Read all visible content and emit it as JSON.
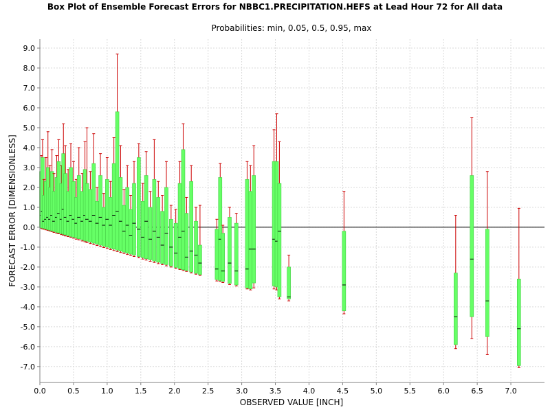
{
  "chart_data": {
    "type": "box",
    "title": "Box Plot of Ensemble Forecast Errors for NBBC1.PRECIPITATION.HEFS at Lead Hour 72 for All data",
    "subtitle": "Probabilities: min, 0.05, 0.5, 0.95, max",
    "xlabel": "OBSERVED VALUE [INCH]",
    "ylabel": "FORECAST ERROR [DIMENSIONLESS]",
    "xlim": [
      0.0,
      7.5
    ],
    "ylim": [
      -7.8,
      9.45
    ],
    "x_ticks": [
      "0.0",
      "0.5",
      "1.0",
      "1.5",
      "2.0",
      "2.5",
      "3.0",
      "3.5",
      "4.0",
      "4.5",
      "5.0",
      "5.5",
      "6.0",
      "6.5",
      "7.0"
    ],
    "y_ticks": [
      "9.0",
      "8.0",
      "7.0",
      "6.0",
      "5.0",
      "4.0",
      "3.0",
      "2.0",
      "1.0",
      "0.0",
      "-1.0",
      "-2.0",
      "-3.0",
      "-4.0",
      "-5.0",
      "-6.0",
      "-7.0"
    ],
    "grid": true,
    "colors": {
      "whisker": "#cc0000",
      "box": "#66ff66",
      "box_edge": "#44cc44",
      "median": "#000000",
      "zero_line": "#000000",
      "grid": "#d9d9d9"
    },
    "series": [
      {
        "x": 0.02,
        "min": -0.05,
        "p05": -0.02,
        "median": 0.6,
        "p95": 2.8,
        "max": 3.6
      },
      {
        "x": 0.04,
        "min": -0.08,
        "p05": -0.04,
        "median": 0.8,
        "p95": 3.5,
        "max": 4.4
      },
      {
        "x": 0.06,
        "min": -0.1,
        "p05": -0.06,
        "median": 0.3,
        "p95": 1.6,
        "max": 2.4
      },
      {
        "x": 0.09,
        "min": -0.13,
        "p05": -0.09,
        "median": 0.4,
        "p95": 2.3,
        "max": 3.5
      },
      {
        "x": 0.12,
        "min": -0.16,
        "p05": -0.12,
        "median": 0.5,
        "p95": 3.0,
        "max": 4.8
      },
      {
        "x": 0.15,
        "min": -0.19,
        "p05": -0.15,
        "median": 0.4,
        "p95": 2.0,
        "max": 3.1
      },
      {
        "x": 0.18,
        "min": -0.22,
        "p05": -0.18,
        "median": 0.6,
        "p95": 2.8,
        "max": 3.9
      },
      {
        "x": 0.21,
        "min": -0.26,
        "p05": -0.21,
        "median": 0.3,
        "p95": 1.8,
        "max": 2.7
      },
      {
        "x": 0.25,
        "min": -0.3,
        "p05": -0.25,
        "median": 0.5,
        "p95": 2.5,
        "max": 3.6
      },
      {
        "x": 0.28,
        "min": -0.33,
        "p05": -0.28,
        "median": 0.7,
        "p95": 3.3,
        "max": 4.4
      },
      {
        "x": 0.32,
        "min": -0.37,
        "p05": -0.32,
        "median": 0.4,
        "p95": 2.2,
        "max": 3.1
      },
      {
        "x": 0.35,
        "min": -0.4,
        "p05": -0.35,
        "median": 0.9,
        "p95": 3.7,
        "max": 5.2
      },
      {
        "x": 0.38,
        "min": -0.44,
        "p05": -0.38,
        "median": 0.5,
        "p95": 2.7,
        "max": 4.1
      },
      {
        "x": 0.42,
        "min": -0.47,
        "p05": -0.42,
        "median": 0.3,
        "p95": 1.8,
        "max": 2.9
      },
      {
        "x": 0.46,
        "min": -0.51,
        "p05": -0.46,
        "median": 0.6,
        "p95": 3.0,
        "max": 4.2
      },
      {
        "x": 0.5,
        "min": -0.55,
        "p05": -0.5,
        "median": 0.4,
        "p95": 2.3,
        "max": 3.3
      },
      {
        "x": 0.54,
        "min": -0.6,
        "p05": -0.54,
        "median": 0.2,
        "p95": 1.5,
        "max": 2.4
      },
      {
        "x": 0.58,
        "min": -0.64,
        "p05": -0.58,
        "median": 0.5,
        "p95": 2.6,
        "max": 4.0
      },
      {
        "x": 0.63,
        "min": -0.69,
        "p05": -0.63,
        "median": 0.3,
        "p95": 1.8,
        "max": 2.7
      },
      {
        "x": 0.67,
        "min": -0.73,
        "p05": -0.67,
        "median": 0.6,
        "p95": 2.9,
        "max": 4.3
      },
      {
        "x": 0.7,
        "min": -0.77,
        "p05": -0.7,
        "median": 0.4,
        "p95": 2.2,
        "max": 5.0
      },
      {
        "x": 0.75,
        "min": -0.82,
        "p05": -0.75,
        "median": 0.3,
        "p95": 1.9,
        "max": 2.8
      },
      {
        "x": 0.8,
        "min": -0.87,
        "p05": -0.8,
        "median": 0.6,
        "p95": 3.2,
        "max": 4.7
      },
      {
        "x": 0.85,
        "min": -0.92,
        "p05": -0.85,
        "median": 0.2,
        "p95": 1.3,
        "max": 2.0
      },
      {
        "x": 0.9,
        "min": -0.97,
        "p05": -0.9,
        "median": 0.5,
        "p95": 2.6,
        "max": 3.7
      },
      {
        "x": 0.95,
        "min": -1.02,
        "p05": -0.95,
        "median": 0.1,
        "p95": 1.0,
        "max": 1.7
      },
      {
        "x": 1.0,
        "min": -1.07,
        "p05": -1.0,
        "median": 0.4,
        "p95": 2.4,
        "max": 3.5
      },
      {
        "x": 1.05,
        "min": -1.12,
        "p05": -1.05,
        "median": 0.1,
        "p95": 1.5,
        "max": 2.3
      },
      {
        "x": 1.1,
        "min": -1.17,
        "p05": -1.1,
        "median": 0.6,
        "p95": 3.2,
        "max": 4.5
      },
      {
        "x": 1.15,
        "min": -1.22,
        "p05": -1.15,
        "median": 0.8,
        "p95": 5.8,
        "max": 8.7
      },
      {
        "x": 1.2,
        "min": -1.27,
        "p05": -1.2,
        "median": 0.3,
        "p95": 2.5,
        "max": 4.1
      },
      {
        "x": 1.25,
        "min": -1.32,
        "p05": -1.25,
        "median": -0.2,
        "p95": 1.1,
        "max": 1.9
      },
      {
        "x": 1.3,
        "min": -1.37,
        "p05": -1.3,
        "median": 0.1,
        "p95": 2.0,
        "max": 3.1
      },
      {
        "x": 1.35,
        "min": -1.42,
        "p05": -1.35,
        "median": -0.4,
        "p95": 0.9,
        "max": 1.6
      },
      {
        "x": 1.4,
        "min": -1.47,
        "p05": -1.4,
        "median": 0.2,
        "p95": 2.2,
        "max": 3.3
      },
      {
        "x": 1.47,
        "min": -1.54,
        "p05": -1.47,
        "median": -0.1,
        "p95": 3.5,
        "max": 4.2
      },
      {
        "x": 1.53,
        "min": -1.6,
        "p05": -1.53,
        "median": -0.5,
        "p95": 1.3,
        "max": 2.2
      },
      {
        "x": 1.58,
        "min": -1.65,
        "p05": -1.58,
        "median": 0.3,
        "p95": 2.6,
        "max": 3.8
      },
      {
        "x": 1.64,
        "min": -1.71,
        "p05": -1.64,
        "median": -0.6,
        "p95": 1.0,
        "max": 1.8
      },
      {
        "x": 1.7,
        "min": -1.77,
        "p05": -1.7,
        "median": -0.2,
        "p95": 2.4,
        "max": 4.4
      },
      {
        "x": 1.76,
        "min": -1.83,
        "p05": -1.76,
        "median": -0.5,
        "p95": 1.5,
        "max": 2.3
      },
      {
        "x": 1.82,
        "min": -1.88,
        "p05": -1.82,
        "median": -0.9,
        "p95": 0.8,
        "max": 1.6
      },
      {
        "x": 1.88,
        "min": -1.94,
        "p05": -1.88,
        "median": -0.3,
        "p95": 2.0,
        "max": 3.3
      },
      {
        "x": 1.95,
        "min": -2.0,
        "p05": -1.95,
        "median": -1.0,
        "p95": 0.4,
        "max": 1.1
      },
      {
        "x": 2.02,
        "min": -2.07,
        "p05": -2.02,
        "median": -1.3,
        "p95": 0.2,
        "max": 0.9
      },
      {
        "x": 2.08,
        "min": -2.12,
        "p05": -2.08,
        "median": -0.5,
        "p95": 2.2,
        "max": 3.3
      },
      {
        "x": 2.13,
        "min": -2.18,
        "p05": -2.13,
        "median": -0.2,
        "p95": 3.9,
        "max": 5.2
      },
      {
        "x": 2.18,
        "min": -2.22,
        "p05": -2.18,
        "median": -1.5,
        "p95": 0.7,
        "max": 1.5
      },
      {
        "x": 2.25,
        "min": -2.3,
        "p05": -2.25,
        "median": -1.2,
        "p95": 2.3,
        "max": 3.1
      },
      {
        "x": 2.32,
        "min": -2.36,
        "p05": -2.32,
        "median": -1.4,
        "p95": 0.3,
        "max": 1.0
      },
      {
        "x": 2.38,
        "min": -2.42,
        "p05": -2.38,
        "median": -1.8,
        "p95": -0.9,
        "max": 1.1
      },
      {
        "x": 2.63,
        "min": -2.7,
        "p05": -2.63,
        "median": -2.1,
        "p95": -0.1,
        "max": 0.4
      },
      {
        "x": 2.68,
        "min": -2.72,
        "p05": -2.68,
        "median": -0.6,
        "p95": 2.5,
        "max": 3.2
      },
      {
        "x": 2.72,
        "min": -2.78,
        "p05": -2.72,
        "median": -2.2,
        "p95": -0.3,
        "max": 0.1
      },
      {
        "x": 2.82,
        "min": -2.88,
        "p05": -2.82,
        "median": -1.8,
        "p95": 0.5,
        "max": 1.0
      },
      {
        "x": 2.92,
        "min": -2.95,
        "p05": -2.9,
        "median": -2.2,
        "p95": 0.2,
        "max": 0.7
      },
      {
        "x": 3.08,
        "min": -3.1,
        "p05": -3.05,
        "median": -2.1,
        "p95": 2.4,
        "max": 3.3
      },
      {
        "x": 3.13,
        "min": -3.15,
        "p05": -3.1,
        "median": -1.1,
        "p95": 1.8,
        "max": 3.1
      },
      {
        "x": 3.18,
        "min": -3.05,
        "p05": -2.8,
        "median": -1.1,
        "p95": 2.6,
        "max": 4.1
      },
      {
        "x": 3.48,
        "min": -3.1,
        "p05": -2.95,
        "median": -0.6,
        "p95": 3.3,
        "max": 4.9
      },
      {
        "x": 3.52,
        "min": -3.15,
        "p05": -3.0,
        "median": -0.7,
        "p95": 3.3,
        "max": 5.7
      },
      {
        "x": 3.56,
        "min": -3.6,
        "p05": -3.5,
        "median": -0.2,
        "p95": 2.2,
        "max": 4.3
      },
      {
        "x": 3.7,
        "min": -3.7,
        "p05": -3.6,
        "median": -3.5,
        "p95": -2.0,
        "max": -1.4
      },
      {
        "x": 4.52,
        "min": -4.35,
        "p05": -4.2,
        "median": -2.9,
        "p95": -0.2,
        "max": 1.8
      },
      {
        "x": 6.18,
        "min": -6.1,
        "p05": -5.9,
        "median": -4.5,
        "p95": -2.3,
        "max": 0.6
      },
      {
        "x": 6.42,
        "min": -5.6,
        "p05": -4.5,
        "median": -1.6,
        "p95": 2.6,
        "max": 5.5
      },
      {
        "x": 6.65,
        "min": -6.4,
        "p05": -5.5,
        "median": -3.7,
        "p95": -0.1,
        "max": 2.8
      },
      {
        "x": 7.12,
        "min": -7.05,
        "p05": -6.95,
        "median": -5.1,
        "p95": -2.6,
        "max": 0.95
      }
    ]
  }
}
